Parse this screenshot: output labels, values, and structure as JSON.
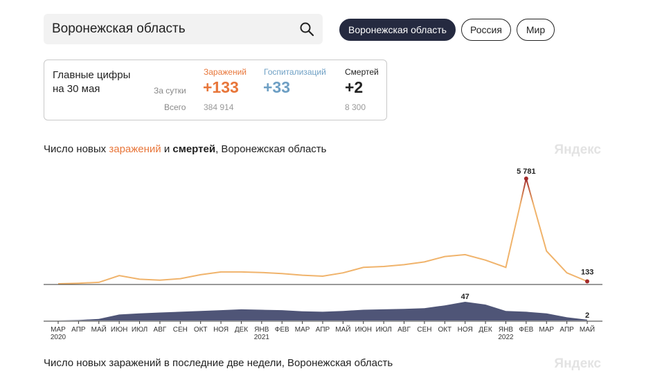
{
  "search": {
    "value": "Воронежская область"
  },
  "regions": [
    {
      "label": "Воронежская область",
      "active": true
    },
    {
      "label": "Россия",
      "active": false
    },
    {
      "label": "Мир",
      "active": false
    }
  ],
  "stats": {
    "title_line1": "Главные цифры",
    "title_line2": "на 30 мая",
    "per_day_label": "За сутки",
    "total_label": "Всего",
    "infections": {
      "label": "Заражений",
      "day": "+133",
      "total": "384 914",
      "color": "#e8763a"
    },
    "hospitalizations": {
      "label": "Госпитализаций",
      "day": "+33",
      "total": "",
      "color": "#6d9fc4"
    },
    "deaths": {
      "label": "Смертей",
      "day": "+2",
      "total": "8 300",
      "color": "#222222"
    }
  },
  "section1": {
    "prefix": "Число новых ",
    "infections_word": "заражений",
    "middle": " и ",
    "deaths_word": "смертей",
    "suffix": ", Воронежская область",
    "watermark": "Яндекс"
  },
  "section2": {
    "title": "Число новых заражений в последние две недели, Воронежская область",
    "watermark": "Яндекс"
  },
  "chart_data": {
    "type": "area",
    "infections": {
      "x": [
        "2020-03",
        "2020-04",
        "2020-05",
        "2020-06",
        "2020-07",
        "2020-08",
        "2020-09",
        "2020-10",
        "2020-11",
        "2020-12",
        "2021-01",
        "2021-02",
        "2021-03",
        "2021-04",
        "2021-05",
        "2021-06",
        "2021-07",
        "2021-08",
        "2021-09",
        "2021-10",
        "2021-11",
        "2021-12",
        "2022-01",
        "2022-02",
        "2022-03",
        "2022-04",
        "2022-05"
      ],
      "values": [
        0,
        30,
        80,
        450,
        250,
        200,
        280,
        500,
        650,
        650,
        620,
        560,
        470,
        420,
        600,
        900,
        950,
        1050,
        1200,
        1500,
        1600,
        1300,
        900,
        5781,
        1800,
        600,
        133
      ],
      "peak_label": "5 781",
      "last_label": "133"
    },
    "deaths": {
      "values": [
        0,
        1,
        4,
        15,
        18,
        20,
        22,
        24,
        26,
        28,
        27,
        26,
        23,
        22,
        24,
        27,
        28,
        29,
        31,
        38,
        47,
        40,
        24,
        22,
        18,
        8,
        2
      ],
      "peak_label": "47",
      "last_label": "2"
    },
    "month_ticks": [
      "МАР",
      "АПР",
      "МАЙ",
      "ИЮН",
      "ИЮЛ",
      "АВГ",
      "СЕН",
      "ОКТ",
      "НОЯ",
      "ДЕК",
      "ЯНВ",
      "ФЕВ",
      "МАР",
      "АПР",
      "МАЙ",
      "ИЮН",
      "ИЮЛ",
      "АВГ",
      "СЕН",
      "ОКТ",
      "НОЯ",
      "ДЕК",
      "ЯНВ",
      "ФЕВ",
      "МАР",
      "АПР",
      "МАЙ"
    ],
    "year_labels": [
      {
        "month_index": 0,
        "label": "2020"
      },
      {
        "month_index": 10,
        "label": "2021"
      },
      {
        "month_index": 22,
        "label": "2022"
      }
    ],
    "colors": {
      "infections": "#f0b36b",
      "infections_peak": "#a32a2a",
      "deaths": "#4f5577",
      "axis": "#333333"
    }
  }
}
